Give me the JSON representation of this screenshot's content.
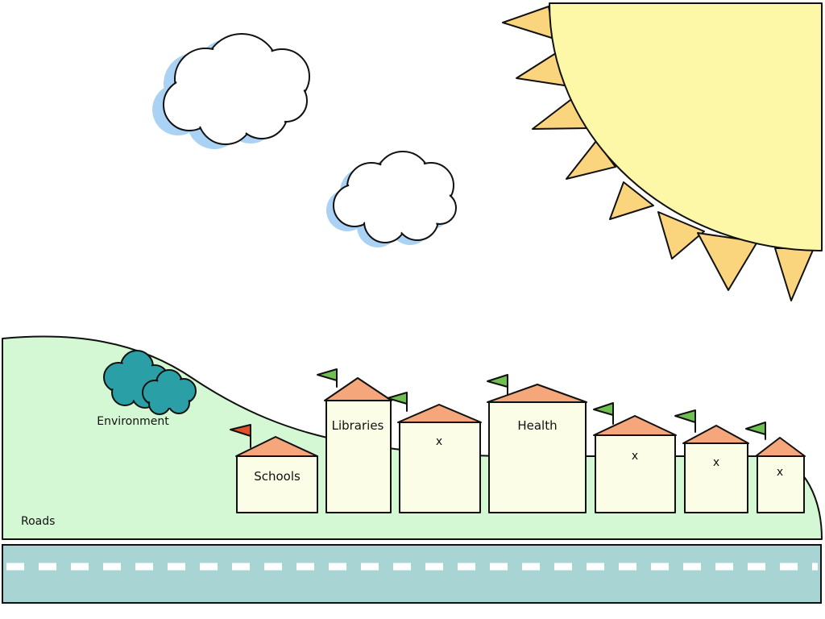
{
  "scene": {
    "areas": {
      "environment": "Environment",
      "roads": "Roads"
    },
    "buildings": [
      {
        "label": "Schools",
        "flag": "red"
      },
      {
        "label": "Libraries",
        "flag": "green"
      },
      {
        "label": "x",
        "flag": "green"
      },
      {
        "label": "Health",
        "flag": "green"
      },
      {
        "label": "x",
        "flag": "green"
      },
      {
        "label": "x",
        "flag": "green"
      },
      {
        "label": "x",
        "flag": "green"
      }
    ]
  },
  "colors": {
    "sky": "#ffffff",
    "sun": "#fdf8a8",
    "sun_rays": "#fbd57e",
    "cloud_shadow": "#a9d2f5",
    "cloud": "#ffffff",
    "hill": "#d4f8d4",
    "road": "#a8d4d4",
    "road_marking": "#ffffff",
    "building": "#fbfde6",
    "roof": "#f5a67b",
    "tree": "#2aa0a6",
    "flag_green": "#6fbf53",
    "flag_red": "#e2522a",
    "outline": "#111111"
  }
}
